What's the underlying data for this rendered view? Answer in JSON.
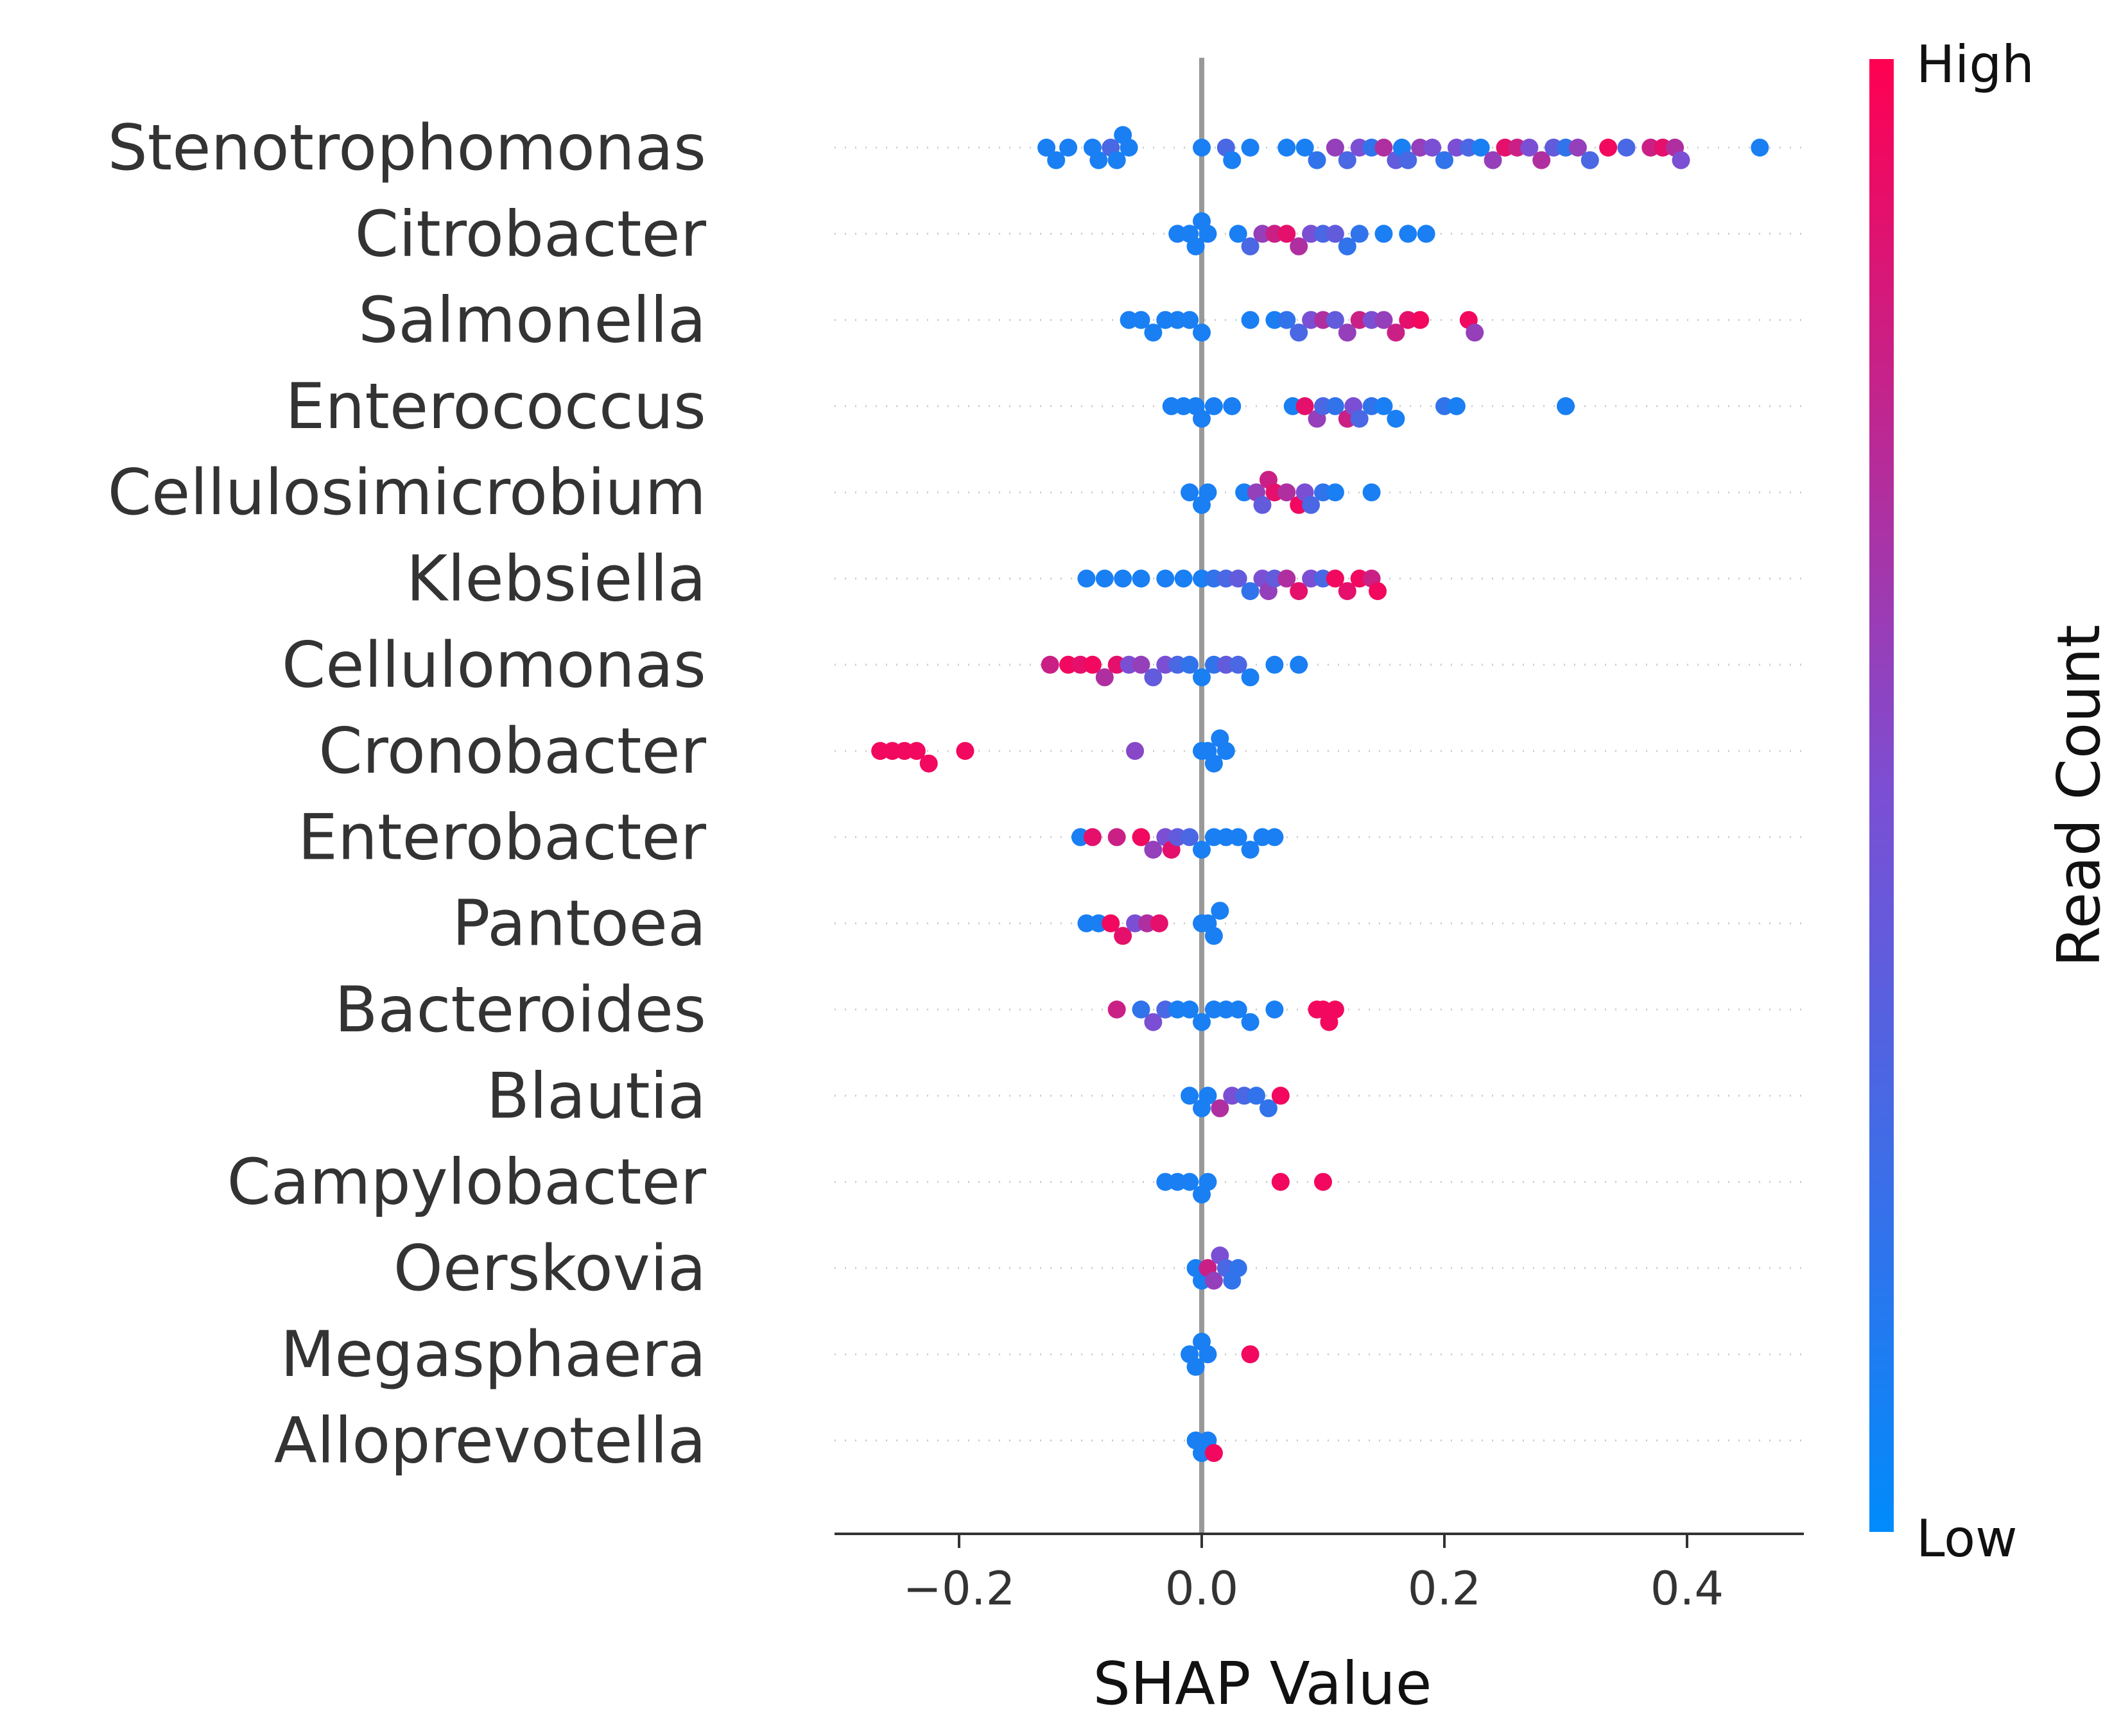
{
  "chart_data": {
    "type": "scatter",
    "subtype": "shap-beeswarm",
    "xlabel": "SHAP Value",
    "xlim": [
      -0.305,
      0.495
    ],
    "xticks": [
      -0.2,
      0.0,
      0.2,
      0.4
    ],
    "xtick_labels": [
      "−0.2",
      "0.0",
      "0.2",
      "0.4"
    ],
    "colorbar": {
      "label": "Read Count",
      "high_label": "High",
      "low_label": "Low",
      "low_color": "#008bfb",
      "high_color": "#ff0051"
    },
    "features": [
      {
        "name": "Stenotrophomonas",
        "points": [
          [
            -0.128,
            0.1
          ],
          [
            -0.12,
            0.1
          ],
          [
            -0.11,
            0.1
          ],
          [
            -0.09,
            0.1
          ],
          [
            -0.085,
            0.1
          ],
          [
            -0.075,
            0.3
          ],
          [
            -0.07,
            0.1
          ],
          [
            -0.065,
            0.1
          ],
          [
            -0.06,
            0.1
          ],
          [
            0.0,
            0.1
          ],
          [
            0.02,
            0.3
          ],
          [
            0.025,
            0.1
          ],
          [
            0.04,
            0.1
          ],
          [
            0.07,
            0.1
          ],
          [
            0.085,
            0.1
          ],
          [
            0.095,
            0.2
          ],
          [
            0.11,
            0.6
          ],
          [
            0.12,
            0.3
          ],
          [
            0.13,
            0.5
          ],
          [
            0.14,
            0.2
          ],
          [
            0.15,
            0.7
          ],
          [
            0.16,
            0.4
          ],
          [
            0.165,
            0.1
          ],
          [
            0.17,
            0.3
          ],
          [
            0.18,
            0.6
          ],
          [
            0.19,
            0.5
          ],
          [
            0.2,
            0.2
          ],
          [
            0.21,
            0.5
          ],
          [
            0.22,
            0.3
          ],
          [
            0.23,
            0.1
          ],
          [
            0.24,
            0.6
          ],
          [
            0.25,
            0.9
          ],
          [
            0.26,
            0.8
          ],
          [
            0.27,
            0.5
          ],
          [
            0.28,
            0.7
          ],
          [
            0.29,
            0.4
          ],
          [
            0.3,
            0.2
          ],
          [
            0.31,
            0.6
          ],
          [
            0.32,
            0.3
          ],
          [
            0.335,
            0.95
          ],
          [
            0.35,
            0.3
          ],
          [
            0.37,
            0.8
          ],
          [
            0.38,
            0.9
          ],
          [
            0.39,
            0.7
          ],
          [
            0.395,
            0.5
          ],
          [
            0.46,
            0.1
          ]
        ]
      },
      {
        "name": "Citrobacter",
        "points": [
          [
            -0.02,
            0.1
          ],
          [
            -0.01,
            0.1
          ],
          [
            -0.005,
            0.1
          ],
          [
            0.0,
            0.1
          ],
          [
            0.005,
            0.1
          ],
          [
            0.03,
            0.1
          ],
          [
            0.04,
            0.3
          ],
          [
            0.05,
            0.6
          ],
          [
            0.06,
            0.8
          ],
          [
            0.07,
            0.9
          ],
          [
            0.08,
            0.7
          ],
          [
            0.09,
            0.5
          ],
          [
            0.1,
            0.3
          ],
          [
            0.11,
            0.4
          ],
          [
            0.12,
            0.2
          ],
          [
            0.13,
            0.2
          ],
          [
            0.15,
            0.1
          ],
          [
            0.17,
            0.1
          ],
          [
            0.185,
            0.1
          ]
        ]
      },
      {
        "name": "Salmonella",
        "points": [
          [
            -0.06,
            0.1
          ],
          [
            -0.05,
            0.1
          ],
          [
            -0.04,
            0.1
          ],
          [
            -0.03,
            0.1
          ],
          [
            -0.02,
            0.1
          ],
          [
            -0.01,
            0.1
          ],
          [
            0.0,
            0.1
          ],
          [
            0.04,
            0.1
          ],
          [
            0.06,
            0.1
          ],
          [
            0.07,
            0.2
          ],
          [
            0.08,
            0.3
          ],
          [
            0.09,
            0.5
          ],
          [
            0.1,
            0.7
          ],
          [
            0.11,
            0.4
          ],
          [
            0.12,
            0.6
          ],
          [
            0.13,
            0.8
          ],
          [
            0.14,
            0.5
          ],
          [
            0.15,
            0.6
          ],
          [
            0.16,
            0.8
          ],
          [
            0.17,
            0.9
          ],
          [
            0.18,
            0.95
          ],
          [
            0.22,
            0.95
          ],
          [
            0.225,
            0.6
          ]
        ]
      },
      {
        "name": "Enterococcus",
        "points": [
          [
            -0.025,
            0.1
          ],
          [
            -0.015,
            0.1
          ],
          [
            -0.005,
            0.1
          ],
          [
            0.0,
            0.1
          ],
          [
            0.01,
            0.1
          ],
          [
            0.025,
            0.1
          ],
          [
            0.075,
            0.1
          ],
          [
            0.085,
            0.9
          ],
          [
            0.095,
            0.6
          ],
          [
            0.1,
            0.3
          ],
          [
            0.11,
            0.2
          ],
          [
            0.12,
            0.8
          ],
          [
            0.125,
            0.5
          ],
          [
            0.13,
            0.3
          ],
          [
            0.14,
            0.2
          ],
          [
            0.15,
            0.1
          ],
          [
            0.16,
            0.1
          ],
          [
            0.2,
            0.2
          ],
          [
            0.21,
            0.1
          ],
          [
            0.3,
            0.1
          ]
        ]
      },
      {
        "name": "Cellulosimicrobium",
        "points": [
          [
            -0.01,
            0.1
          ],
          [
            0.0,
            0.1
          ],
          [
            0.005,
            0.1
          ],
          [
            0.035,
            0.1
          ],
          [
            0.045,
            0.6
          ],
          [
            0.05,
            0.4
          ],
          [
            0.055,
            0.8
          ],
          [
            0.06,
            0.9
          ],
          [
            0.07,
            0.7
          ],
          [
            0.08,
            0.95
          ],
          [
            0.085,
            0.5
          ],
          [
            0.09,
            0.3
          ],
          [
            0.1,
            0.2
          ],
          [
            0.11,
            0.1
          ],
          [
            0.14,
            0.1
          ]
        ]
      },
      {
        "name": "Klebsiella",
        "points": [
          [
            -0.095,
            0.1
          ],
          [
            -0.08,
            0.1
          ],
          [
            -0.065,
            0.1
          ],
          [
            -0.05,
            0.1
          ],
          [
            -0.03,
            0.1
          ],
          [
            -0.015,
            0.1
          ],
          [
            0.0,
            0.1
          ],
          [
            0.01,
            0.2
          ],
          [
            0.02,
            0.3
          ],
          [
            0.03,
            0.4
          ],
          [
            0.04,
            0.2
          ],
          [
            0.05,
            0.5
          ],
          [
            0.055,
            0.6
          ],
          [
            0.06,
            0.4
          ],
          [
            0.07,
            0.7
          ],
          [
            0.08,
            0.9
          ],
          [
            0.09,
            0.5
          ],
          [
            0.1,
            0.3
          ],
          [
            0.11,
            0.95
          ],
          [
            0.12,
            0.9
          ],
          [
            0.13,
            0.95
          ],
          [
            0.14,
            0.8
          ],
          [
            0.145,
            0.95
          ]
        ]
      },
      {
        "name": "Cellulomonas",
        "points": [
          [
            -0.125,
            0.8
          ],
          [
            -0.11,
            0.95
          ],
          [
            -0.1,
            0.9
          ],
          [
            -0.09,
            0.95
          ],
          [
            -0.08,
            0.7
          ],
          [
            -0.07,
            0.9
          ],
          [
            -0.06,
            0.5
          ],
          [
            -0.05,
            0.6
          ],
          [
            -0.04,
            0.4
          ],
          [
            -0.03,
            0.5
          ],
          [
            -0.02,
            0.3
          ],
          [
            -0.01,
            0.2
          ],
          [
            0.0,
            0.1
          ],
          [
            0.01,
            0.2
          ],
          [
            0.02,
            0.4
          ],
          [
            0.03,
            0.3
          ],
          [
            0.04,
            0.1
          ],
          [
            0.06,
            0.1
          ],
          [
            0.08,
            0.1
          ]
        ]
      },
      {
        "name": "Cronobacter",
        "points": [
          [
            -0.265,
            0.95
          ],
          [
            -0.255,
            0.95
          ],
          [
            -0.245,
            0.95
          ],
          [
            -0.235,
            0.95
          ],
          [
            -0.225,
            0.95
          ],
          [
            -0.195,
            0.95
          ],
          [
            -0.055,
            0.55
          ],
          [
            0.0,
            0.1
          ],
          [
            0.005,
            0.1
          ],
          [
            0.01,
            0.1
          ],
          [
            0.015,
            0.1
          ],
          [
            0.02,
            0.1
          ]
        ]
      },
      {
        "name": "Enterobacter",
        "points": [
          [
            -0.1,
            0.1
          ],
          [
            -0.09,
            0.9
          ],
          [
            -0.07,
            0.8
          ],
          [
            -0.05,
            0.95
          ],
          [
            -0.04,
            0.6
          ],
          [
            -0.03,
            0.5
          ],
          [
            -0.025,
            0.9
          ],
          [
            -0.02,
            0.4
          ],
          [
            -0.01,
            0.3
          ],
          [
            0.0,
            0.1
          ],
          [
            0.01,
            0.1
          ],
          [
            0.02,
            0.1
          ],
          [
            0.03,
            0.1
          ],
          [
            0.04,
            0.1
          ],
          [
            0.05,
            0.1
          ],
          [
            0.06,
            0.1
          ]
        ]
      },
      {
        "name": "Pantoea",
        "points": [
          [
            -0.095,
            0.1
          ],
          [
            -0.085,
            0.1
          ],
          [
            -0.075,
            0.95
          ],
          [
            -0.065,
            0.9
          ],
          [
            -0.055,
            0.5
          ],
          [
            -0.045,
            0.7
          ],
          [
            -0.035,
            0.9
          ],
          [
            0.0,
            0.1
          ],
          [
            0.005,
            0.1
          ],
          [
            0.01,
            0.1
          ],
          [
            0.015,
            0.1
          ]
        ]
      },
      {
        "name": "Bacteroides",
        "points": [
          [
            -0.07,
            0.8
          ],
          [
            -0.05,
            0.2
          ],
          [
            -0.04,
            0.5
          ],
          [
            -0.03,
            0.3
          ],
          [
            -0.02,
            0.1
          ],
          [
            -0.01,
            0.1
          ],
          [
            0.0,
            0.1
          ],
          [
            0.01,
            0.1
          ],
          [
            0.02,
            0.1
          ],
          [
            0.03,
            0.1
          ],
          [
            0.04,
            0.1
          ],
          [
            0.06,
            0.1
          ],
          [
            0.095,
            0.95
          ],
          [
            0.1,
            0.95
          ],
          [
            0.105,
            0.95
          ],
          [
            0.11,
            0.95
          ]
        ]
      },
      {
        "name": "Blautia",
        "points": [
          [
            -0.01,
            0.1
          ],
          [
            0.0,
            0.1
          ],
          [
            0.005,
            0.1
          ],
          [
            0.015,
            0.7
          ],
          [
            0.025,
            0.5
          ],
          [
            0.035,
            0.3
          ],
          [
            0.045,
            0.2
          ],
          [
            0.055,
            0.2
          ],
          [
            0.065,
            0.95
          ]
        ]
      },
      {
        "name": "Campylobacter",
        "points": [
          [
            -0.03,
            0.1
          ],
          [
            -0.02,
            0.1
          ],
          [
            -0.01,
            0.1
          ],
          [
            0.0,
            0.1
          ],
          [
            0.005,
            0.1
          ],
          [
            0.065,
            0.95
          ],
          [
            0.1,
            0.95
          ]
        ]
      },
      {
        "name": "Oerskovia",
        "points": [
          [
            -0.005,
            0.1
          ],
          [
            0.0,
            0.1
          ],
          [
            0.005,
            0.8
          ],
          [
            0.01,
            0.6
          ],
          [
            0.015,
            0.5
          ],
          [
            0.02,
            0.3
          ],
          [
            0.025,
            0.2
          ],
          [
            0.03,
            0.2
          ]
        ]
      },
      {
        "name": "Megasphaera",
        "points": [
          [
            -0.01,
            0.1
          ],
          [
            -0.005,
            0.1
          ],
          [
            0.0,
            0.1
          ],
          [
            0.005,
            0.1
          ],
          [
            0.04,
            0.95
          ]
        ]
      },
      {
        "name": "Alloprevotella",
        "points": [
          [
            -0.005,
            0.1
          ],
          [
            0.0,
            0.1
          ],
          [
            0.005,
            0.1
          ],
          [
            0.01,
            0.95
          ]
        ]
      }
    ]
  }
}
